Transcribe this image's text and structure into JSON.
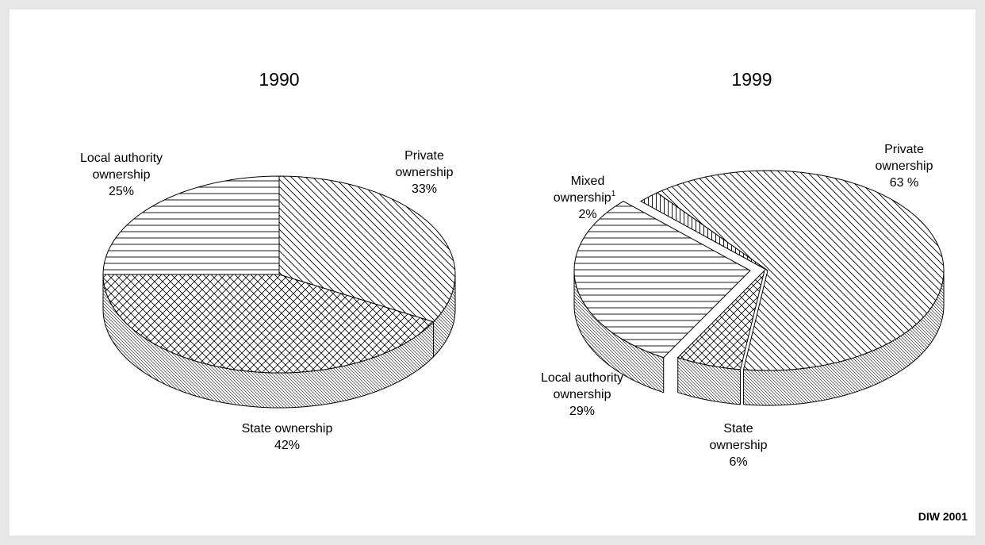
{
  "chart_data": [
    {
      "type": "pie",
      "title": "1990",
      "slices": [
        {
          "name": "Private ownership",
          "label_lines": [
            "Private",
            "ownership"
          ],
          "value_label": "33%",
          "value": 33,
          "pattern": "diag-down"
        },
        {
          "name": "State ownership",
          "label_lines": [
            "State ownership"
          ],
          "value_label": "42%",
          "value": 42,
          "pattern": "crosshatch"
        },
        {
          "name": "Local authority ownership",
          "label_lines": [
            "Local authority",
            "ownership"
          ],
          "value_label": "25%",
          "value": 25,
          "pattern": "horizontal"
        }
      ]
    },
    {
      "type": "pie",
      "title": "1999",
      "slices": [
        {
          "name": "Private ownership",
          "label_lines": [
            "Private",
            "ownership"
          ],
          "value_label": "63 %",
          "value": 63,
          "pattern": "diag-down"
        },
        {
          "name": "State ownership",
          "label_lines": [
            "State",
            "ownership"
          ],
          "value_label": "6%",
          "value": 6,
          "pattern": "crosshatch"
        },
        {
          "name": "Local authority ownership",
          "label_lines": [
            "Local authority",
            "ownership"
          ],
          "value_label": "29%",
          "value": 29,
          "pattern": "horizontal"
        },
        {
          "name": "Mixed ownership",
          "label_lines": [
            "Mixed",
            "ownership"
          ],
          "footnote": "1",
          "value_label": "2%",
          "value": 2,
          "pattern": "vertical"
        }
      ]
    }
  ],
  "credit": "DIW 2001"
}
